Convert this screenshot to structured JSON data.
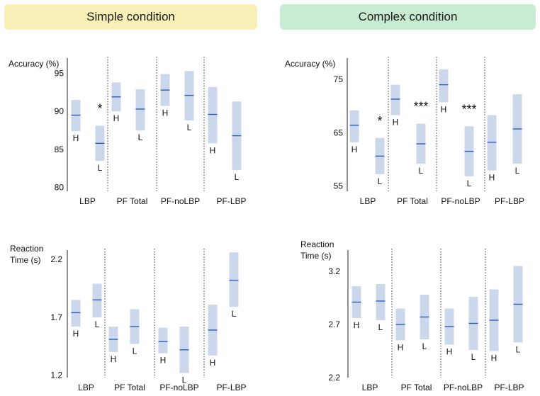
{
  "headers": {
    "simple": "Simple condition",
    "complex": "Complex condition"
  },
  "colors": {
    "box": "#cbd8ec",
    "median": "#2f5fb3",
    "axis": "#222222",
    "divider": "#333333"
  },
  "chart_data": [
    {
      "id": "simple-accuracy",
      "type": "box",
      "condition": "Simple condition",
      "ylabel": "Accuracy (%)",
      "ylim": [
        79.5,
        97
      ],
      "yticks": [
        "80",
        "85",
        "90",
        "95"
      ],
      "categories": [
        "LBP",
        "PF Total",
        "PF-noLBP",
        "PF-LBP"
      ],
      "boxes": [
        {
          "group": "LBP",
          "label": "H",
          "low": 87.4,
          "median": 89.5,
          "high": 91.5
        },
        {
          "group": "LBP",
          "label": "L",
          "low": 83.5,
          "median": 85.8,
          "high": 88.1
        },
        {
          "group": "PF Total",
          "label": "H",
          "low": 90.0,
          "median": 91.9,
          "high": 93.8
        },
        {
          "group": "PF Total",
          "label": "L",
          "low": 87.5,
          "median": 90.3,
          "high": 92.9
        },
        {
          "group": "PF-noLBP",
          "label": "H",
          "low": 90.7,
          "median": 92.8,
          "high": 94.9
        },
        {
          "group": "PF-noLBP",
          "label": "L",
          "low": 88.8,
          "median": 92.1,
          "high": 95.3
        },
        {
          "group": "PF-LBP",
          "label": "H",
          "low": 85.8,
          "median": 89.6,
          "high": 93.2
        },
        {
          "group": "PF-LBP",
          "label": "L",
          "low": 82.3,
          "median": 86.8,
          "high": 91.3
        }
      ],
      "significance": [
        {
          "group": "LBP",
          "text": "*"
        }
      ]
    },
    {
      "id": "complex-accuracy",
      "type": "box",
      "condition": "Complex condition",
      "ylabel": "Accuracy (%)",
      "ylim": [
        54,
        79
      ],
      "yticks": [
        "55",
        "65",
        "75"
      ],
      "categories": [
        "LBP",
        "PF Total",
        "PF-noLBP",
        "PF-LBP"
      ],
      "boxes": [
        {
          "group": "LBP",
          "label": "H",
          "low": 63.2,
          "median": 66.4,
          "high": 69.2
        },
        {
          "group": "LBP",
          "label": "L",
          "low": 57.2,
          "median": 60.6,
          "high": 64.0
        },
        {
          "group": "PF Total",
          "label": "H",
          "low": 68.3,
          "median": 71.3,
          "high": 74.0
        },
        {
          "group": "PF Total",
          "label": "L",
          "low": 59.2,
          "median": 62.9,
          "high": 66.7
        },
        {
          "group": "PF-noLBP",
          "label": "H",
          "low": 70.7,
          "median": 74.0,
          "high": 76.9
        },
        {
          "group": "PF-noLBP",
          "label": "L",
          "low": 56.8,
          "median": 61.5,
          "high": 66.2
        },
        {
          "group": "PF-LBP",
          "label": "H",
          "low": 57.9,
          "median": 63.2,
          "high": 68.3
        },
        {
          "group": "PF-LBP",
          "label": "L",
          "low": 59.2,
          "median": 65.7,
          "high": 72.2
        }
      ],
      "significance": [
        {
          "group": "LBP",
          "text": "*"
        },
        {
          "group": "PF Total",
          "text": "***"
        },
        {
          "group": "PF-noLBP",
          "text": "***"
        }
      ]
    },
    {
      "id": "simple-rt",
      "type": "box",
      "condition": "Simple condition",
      "ylabel": "Reaction Time (s)",
      "ylabel_lines": [
        "Reaction",
        "Time (s)"
      ],
      "ylim": [
        1.18,
        2.28
      ],
      "yticks": [
        "1.2",
        "1.7",
        "2.2"
      ],
      "categories": [
        "LBP",
        "PF Total",
        "PF-noLBP",
        "PF-LBP"
      ],
      "boxes": [
        {
          "group": "LBP",
          "label": "H",
          "low": 1.62,
          "median": 1.74,
          "high": 1.85
        },
        {
          "group": "LBP",
          "label": "L",
          "low": 1.7,
          "median": 1.85,
          "high": 1.99
        },
        {
          "group": "PF Total",
          "label": "H",
          "low": 1.4,
          "median": 1.51,
          "high": 1.62
        },
        {
          "group": "PF Total",
          "label": "L",
          "low": 1.47,
          "median": 1.62,
          "high": 1.77
        },
        {
          "group": "PF-noLBP",
          "label": "H",
          "low": 1.39,
          "median": 1.49,
          "high": 1.61
        },
        {
          "group": "PF-noLBP",
          "label": "L",
          "low": 1.22,
          "median": 1.42,
          "high": 1.62
        },
        {
          "group": "PF-LBP",
          "label": "H",
          "low": 1.37,
          "median": 1.59,
          "high": 1.81
        },
        {
          "group": "PF-LBP",
          "label": "L",
          "low": 1.79,
          "median": 2.02,
          "high": 2.26
        }
      ],
      "significance": []
    },
    {
      "id": "complex-rt",
      "type": "box",
      "condition": "Complex condition",
      "ylabel": "Reaction Time (s)",
      "ylabel_lines": [
        "Reaction",
        "Time (s)"
      ],
      "ylim": [
        2.2,
        3.4
      ],
      "yticks": [
        "2.2",
        "2.7",
        "3.2"
      ],
      "categories": [
        "LBP",
        "PF Total",
        "PF-noLBP",
        "PF-LBP"
      ],
      "boxes": [
        {
          "group": "LBP",
          "label": "H",
          "low": 2.76,
          "median": 2.91,
          "high": 3.06
        },
        {
          "group": "LBP",
          "label": "L",
          "low": 2.74,
          "median": 2.92,
          "high": 3.08
        },
        {
          "group": "PF Total",
          "label": "H",
          "low": 2.55,
          "median": 2.7,
          "high": 2.85
        },
        {
          "group": "PF Total",
          "label": "L",
          "low": 2.56,
          "median": 2.77,
          "high": 2.98
        },
        {
          "group": "PF-noLBP",
          "label": "H",
          "low": 2.51,
          "median": 2.68,
          "high": 2.85
        },
        {
          "group": "PF-noLBP",
          "label": "L",
          "low": 2.46,
          "median": 2.71,
          "high": 2.96
        },
        {
          "group": "PF-LBP",
          "label": "H",
          "low": 2.45,
          "median": 2.74,
          "high": 3.03
        },
        {
          "group": "PF-LBP",
          "label": "L",
          "low": 2.53,
          "median": 2.89,
          "high": 3.25
        }
      ],
      "significance": []
    }
  ]
}
